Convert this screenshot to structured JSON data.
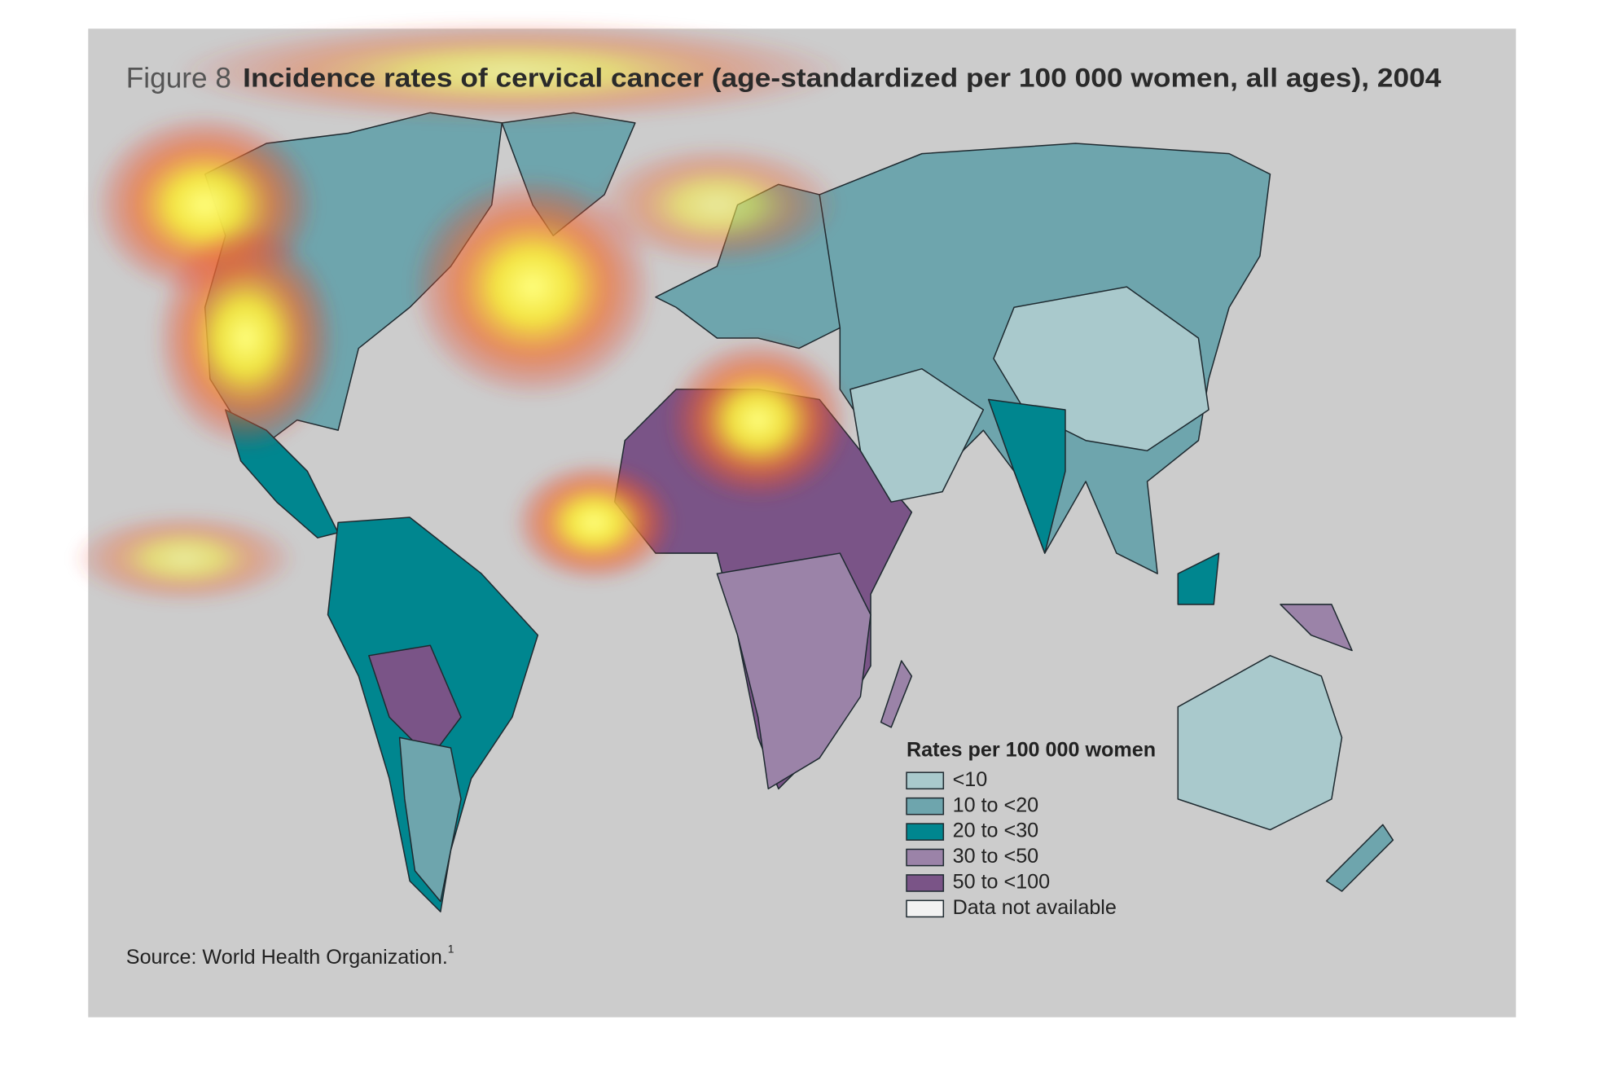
{
  "figure_label": "Figure 8",
  "title": "Incidence rates of cervical cancer (age-standardized per 100 000 women, all ages), 2004",
  "legend": {
    "title": "Rates per 100 000 women",
    "items": [
      {
        "label": "<10",
        "color": "#a9c9cc"
      },
      {
        "label": "10 to <20",
        "color": "#6ea5ad"
      },
      {
        "label": "20 to <30",
        "color": "#00868f"
      },
      {
        "label": "30 to <50",
        "color": "#9b83a8"
      },
      {
        "label": "50 to <100",
        "color": "#7a5487"
      },
      {
        "label": "Data not available",
        "color": "#f2f2f2"
      }
    ]
  },
  "source": {
    "text": "Source: World Health Organization.",
    "note": "1"
  }
}
